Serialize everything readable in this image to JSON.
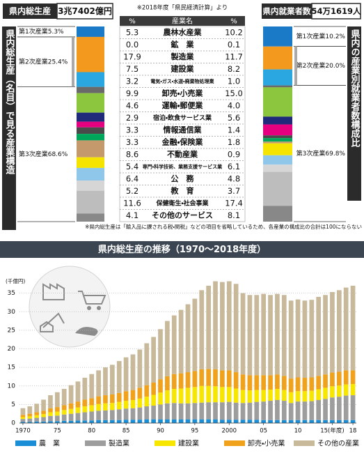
{
  "header": {
    "gdp_label": "県内総生産",
    "gdp_value": "3兆7402億円",
    "source": "※2018年度「県民経済計算」より",
    "workers_label": "県内就業者数",
    "workers_value": "54万1619人"
  },
  "side_titles": {
    "left": "県内総生産（名目）で見る産業構造",
    "right": "県内の産業別就業者数構成比"
  },
  "table": {
    "columns": [
      "%",
      "産業名",
      "%"
    ],
    "industries": [
      "農林水産業",
      "鉱　業",
      "製造業",
      "建設業",
      "電気・ガス・水道・廃棄物処理業",
      "卸売・小売業",
      "運輸・郵便業",
      "宿泊・飲食サービス業",
      "情報通信業",
      "金融・保険業",
      "不動産業",
      "専門・科学技術、業務支援サービス業",
      "公　務",
      "教　育",
      "保健衛生・社会事業",
      "その他のサービス"
    ],
    "colors": [
      "#1a7ac8",
      "#9a9a9a",
      "#f39a1e",
      "#2aa6e0",
      "#6a6a6a",
      "#8cc63f",
      "#1f2a7a",
      "#e4007f",
      "#4a4a4a",
      "#00a65a",
      "#c49a6c",
      "#f5e400",
      "#8fc7ea",
      "#d6d6d6",
      "#bdbdbd",
      "#888888"
    ],
    "gdp": {
      "values": [
        5.3,
        0.0,
        17.9,
        7.5,
        3.2,
        9.9,
        4.6,
        2.9,
        3.3,
        3.3,
        8.6,
        5.4,
        6.4,
        5.2,
        11.6,
        4.1
      ],
      "value_labels": [
        "5.3",
        "0.0",
        "17.9",
        "7.5",
        "3.2",
        "9.9",
        "4.6",
        "2.9",
        "3.3",
        "3.3",
        "8.6",
        "5.4",
        "6.4",
        "5.2",
        "11.6",
        "4.1"
      ]
    },
    "workers": {
      "values": [
        10.2,
        0.1,
        11.7,
        8.2,
        1.0,
        15.0,
        4.0,
        5.6,
        1.4,
        1.8,
        0.9,
        6.1,
        4.8,
        3.7,
        17.4,
        8.1
      ],
      "value_labels": [
        "10.2",
        "0.1",
        "11.7",
        "8.2",
        "1.0",
        "15.0",
        "4.0",
        "5.6",
        "1.4",
        "1.8",
        "0.9",
        "6.1",
        "4.8",
        "3.7",
        "17.4",
        "8.1"
      ]
    }
  },
  "groups": {
    "gdp": [
      "第1次産業5.3%",
      "第2次産業25.4%",
      "第3次産業68.6%"
    ],
    "workers": [
      "第1次産業10.2%",
      "第2次産業20.0%",
      "第3次産業69.8%"
    ]
  },
  "footnote": "※県内総生産は「輸入品に課される税・関税」などの項目を省略しているため、各産業の構成比の合計は100にならない",
  "chart_data": {
    "type": "bar",
    "stacked": true,
    "title": "県内総生産の推移（1970〜2018年度）",
    "y_unit": "(千億円)",
    "categories": [
      "1970",
      null,
      null,
      null,
      null,
      "75",
      null,
      null,
      null,
      null,
      "80",
      null,
      null,
      null,
      null,
      "85",
      null,
      null,
      null,
      null,
      "90",
      null,
      null,
      null,
      null,
      "95",
      null,
      null,
      null,
      null,
      "2000",
      null,
      null,
      null,
      null,
      "05",
      null,
      null,
      null,
      null,
      "10",
      null,
      null,
      null,
      null,
      "15(年度)",
      null,
      null,
      "18"
    ],
    "series": [
      {
        "name": "農　業",
        "color": "#1a8fd8",
        "values": [
          0.3,
          0.3,
          0.4,
          0.4,
          0.5,
          0.5,
          0.6,
          0.6,
          0.7,
          0.7,
          0.7,
          0.8,
          0.8,
          0.8,
          0.8,
          0.9,
          0.9,
          0.9,
          1.0,
          1.0,
          1.0,
          1.0,
          1.0,
          1.0,
          1.0,
          1.0,
          1.0,
          1.0,
          1.0,
          0.9,
          0.9,
          0.9,
          0.9,
          0.9,
          0.9,
          0.8,
          0.8,
          0.8,
          0.8,
          0.8,
          0.8,
          0.8,
          0.8,
          0.8,
          0.8,
          0.8,
          0.8,
          0.8,
          0.8
        ]
      },
      {
        "name": "製造業",
        "color": "#9d9d9d",
        "values": [
          0.8,
          0.9,
          1.0,
          1.2,
          1.4,
          1.5,
          1.7,
          1.9,
          2.0,
          2.2,
          2.4,
          2.5,
          2.6,
          2.7,
          2.9,
          3.0,
          3.1,
          3.3,
          3.5,
          3.7,
          4.0,
          4.3,
          4.4,
          4.3,
          4.3,
          4.4,
          4.5,
          4.6,
          4.6,
          4.7,
          4.8,
          4.6,
          4.5,
          4.6,
          4.8,
          5.0,
          5.2,
          5.4,
          5.2,
          4.6,
          5.0,
          5.0,
          5.1,
          5.4,
          5.7,
          6.1,
          6.3,
          6.6,
          6.7
        ]
      },
      {
        "name": "建設業",
        "color": "#f7e600",
        "values": [
          0.5,
          0.6,
          0.7,
          0.8,
          1.0,
          1.1,
          1.2,
          1.3,
          1.5,
          1.6,
          1.7,
          1.8,
          1.9,
          1.9,
          2.0,
          2.1,
          2.2,
          2.4,
          2.6,
          2.9,
          3.2,
          3.5,
          3.8,
          4.0,
          4.2,
          4.3,
          4.5,
          4.4,
          4.3,
          4.1,
          4.0,
          3.8,
          3.5,
          3.3,
          3.2,
          3.1,
          3.0,
          3.0,
          2.9,
          2.9,
          2.8,
          2.8,
          2.8,
          2.9,
          3.0,
          3.0,
          3.0,
          3.0,
          3.0
        ]
      },
      {
        "name": "卸売・小売業",
        "color": "#f0a21d",
        "values": [
          0.6,
          0.7,
          0.8,
          0.9,
          1.1,
          1.2,
          1.3,
          1.5,
          1.6,
          1.8,
          1.9,
          2.1,
          2.2,
          2.3,
          2.4,
          2.6,
          2.7,
          2.9,
          3.1,
          3.3,
          3.6,
          3.8,
          4.0,
          4.1,
          4.2,
          4.3,
          4.5,
          4.6,
          4.6,
          4.5,
          4.5,
          4.4,
          4.2,
          4.1,
          4.0,
          4.0,
          3.9,
          3.9,
          3.8,
          3.7,
          3.7,
          3.6,
          3.6,
          3.6,
          3.6,
          3.7,
          3.7,
          3.8,
          3.7
        ]
      },
      {
        "name": "その他の産業",
        "color": "#c8b99a",
        "values": [
          1.8,
          2.0,
          2.3,
          3.0,
          3.5,
          4.0,
          4.4,
          4.9,
          5.4,
          5.9,
          6.5,
          7.0,
          7.5,
          8.0,
          8.6,
          9.1,
          9.6,
          10.3,
          11.3,
          12.3,
          13.5,
          14.9,
          15.8,
          17.1,
          18.3,
          19.5,
          21.3,
          22.4,
          23.7,
          23.8,
          24.0,
          23.8,
          21.9,
          21.6,
          21.6,
          21.9,
          21.6,
          21.7,
          21.8,
          21.0,
          21.0,
          20.8,
          20.9,
          21.3,
          21.4,
          21.7,
          22.0,
          22.3,
          22.8
        ]
      }
    ],
    "ylim": [
      0,
      40
    ],
    "yticks": [
      0,
      5,
      10,
      15,
      20,
      25,
      30,
      35
    ],
    "grid": true
  }
}
